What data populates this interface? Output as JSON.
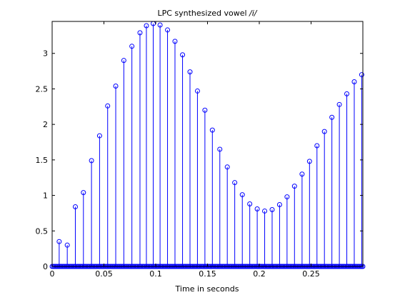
{
  "chart_data": {
    "type": "stem",
    "title_prefix": "LPC synthesized vowel ",
    "title_vowel": "/i/",
    "xlabel": "Time in seconds",
    "ylabel": "",
    "xlim": [
      0,
      0.3
    ],
    "ylim": [
      0,
      3.45
    ],
    "xticks": [
      0,
      0.05,
      0.1,
      0.15,
      0.2,
      0.25
    ],
    "xtick_labels": [
      "0",
      "0.05",
      "0.1",
      "0.15",
      "0.2",
      "0.25"
    ],
    "yticks": [
      0,
      0.5,
      1,
      1.5,
      2,
      2.5,
      3
    ],
    "ytick_labels": [
      "0",
      "0.5",
      "1",
      "1.5",
      "2",
      "2.5",
      "3"
    ],
    "grid": false,
    "color": "#0000ff",
    "series": [
      {
        "x": [
          0.0068,
          0.0146,
          0.0224,
          0.0302,
          0.038,
          0.0458,
          0.0536,
          0.0614,
          0.0692,
          0.077,
          0.0848,
          0.091,
          0.0976,
          0.1042,
          0.1114,
          0.1186,
          0.1259,
          0.1331,
          0.1403,
          0.1475,
          0.1547,
          0.1619,
          0.1691,
          0.1763,
          0.1836,
          0.1908,
          0.198,
          0.2052,
          0.2124,
          0.2196,
          0.2268,
          0.234,
          0.2413,
          0.2485,
          0.2557,
          0.2629,
          0.2701,
          0.2773,
          0.2845,
          0.2917,
          0.2989
        ],
        "y": [
          0.35,
          0.3,
          0.84,
          1.04,
          1.49,
          1.84,
          2.26,
          2.54,
          2.9,
          3.1,
          3.29,
          3.39,
          3.42,
          3.4,
          3.33,
          3.17,
          2.98,
          2.74,
          2.47,
          2.2,
          1.92,
          1.65,
          1.4,
          1.18,
          1.01,
          0.88,
          0.81,
          0.78,
          0.8,
          0.87,
          0.98,
          1.13,
          1.3,
          1.48,
          1.7,
          1.9,
          2.1,
          2.28,
          2.43,
          2.6,
          2.7
        ]
      }
    ]
  }
}
